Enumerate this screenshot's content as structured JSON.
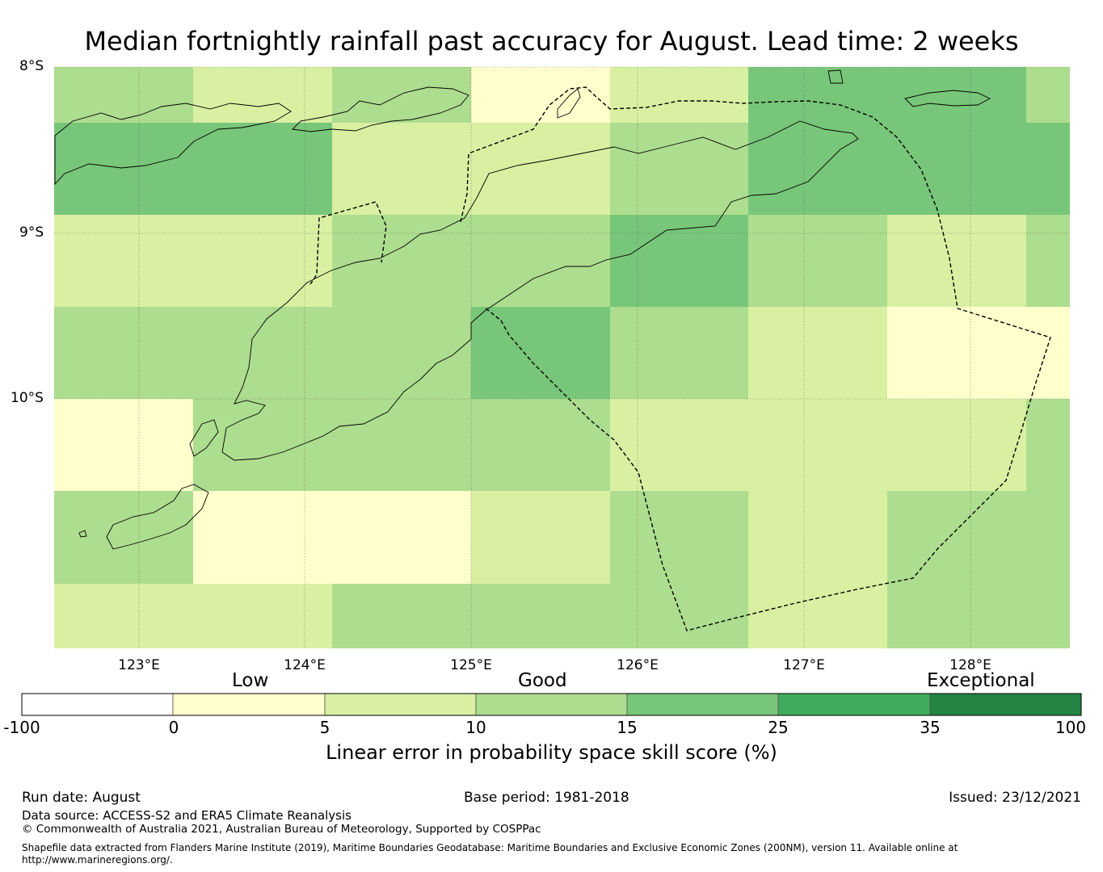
{
  "title": "Median fortnightly rainfall past accuracy for August. Lead time: 2 weeks",
  "map": {
    "lat_labels": [
      "8°S",
      "9°S",
      "10°S"
    ],
    "lon_labels": [
      "123°E",
      "124°E",
      "125°E",
      "126°E",
      "127°E",
      "128°E"
    ],
    "category_colors": [
      "#ffffe5",
      "#ffffcc",
      "#d9f0a3",
      "#addd8e",
      "#78c679",
      "#41ab5d",
      "#238443"
    ],
    "grid_skill_category_index": [
      [
        3,
        2,
        3,
        1,
        2,
        4,
        4
      ],
      [
        4,
        4,
        2,
        2,
        3,
        4,
        4
      ],
      [
        2,
        2,
        3,
        3,
        4,
        3,
        2
      ],
      [
        3,
        3,
        3,
        4,
        3,
        2,
        1
      ],
      [
        1,
        3,
        3,
        3,
        2,
        2,
        2
      ],
      [
        3,
        1,
        1,
        2,
        3,
        2,
        3
      ],
      [
        2,
        2,
        3,
        3,
        3,
        2,
        3
      ]
    ]
  },
  "colorbar": {
    "category_labels": [
      "Low",
      "Good",
      "Exceptional"
    ],
    "ticks": [
      "-100",
      "0",
      "5",
      "10",
      "15",
      "25",
      "35",
      "100"
    ],
    "colors": [
      "#ffffff",
      "#ffffcc",
      "#d9f0a3",
      "#addd8e",
      "#78c679",
      "#41ab5d",
      "#238443"
    ],
    "label": "Linear error in probability space skill score (%)"
  },
  "footer": {
    "run_date": "Run date: August",
    "base_period": "Base period: 1981-2018",
    "issued": "Issued: 23/12/2021",
    "data_source": "Data source: ACCESS-S2 and ERA5 Climate Reanalysis",
    "copyright": "© Commonwealth of Australia 2021, Australian Bureau of Meteorology, Supported by COSPPac",
    "shapefile_line1": "Shapefile data extracted from Flanders Marine Institute (2019), Maritime Boundaries Geodatabase: Maritime Boundaries and Exclusive Economic Zones (200NM), version 11. Available online at",
    "shapefile_line2": "http://www.marineregions.org/."
  }
}
